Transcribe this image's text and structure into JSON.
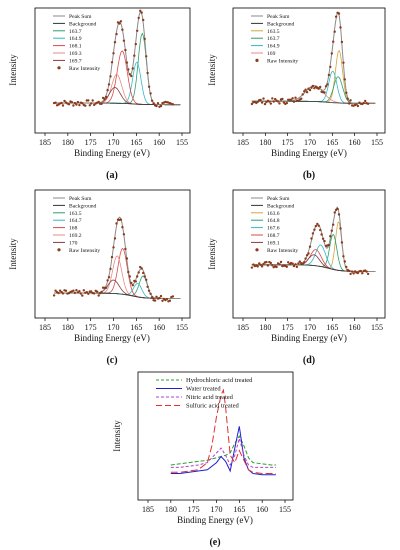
{
  "panels": [
    {
      "id": "a",
      "label": "(a)",
      "chart_data": {
        "type": "line",
        "xlabel": "Binding Energy (eV)",
        "ylabel": "Intensity",
        "xlim": [
          185,
          155
        ],
        "xticks": [
          185,
          180,
          175,
          170,
          165,
          160,
          155
        ],
        "legend": {
          "position": "top-left",
          "entries": [
            {
              "label": "Peak Sum",
              "color": "#8a8a8a",
              "style": "line"
            },
            {
              "label": "Background",
              "color": "#333333",
              "style": "line"
            },
            {
              "label": "163.7",
              "color": "#2ca06a",
              "style": "line"
            },
            {
              "label": "164.9",
              "color": "#33b8c8",
              "style": "line"
            },
            {
              "label": "168.1",
              "color": "#d94a4a",
              "style": "line"
            },
            {
              "label": "169.3",
              "color": "#e88a8a",
              "style": "line"
            },
            {
              "label": "169.7",
              "color": "#8a3a3a",
              "style": "line"
            },
            {
              "label": "Raw Intensity",
              "color": "#8b3a1a",
              "style": "dot"
            }
          ]
        },
        "curves": {
          "baseline": 0.85,
          "bg_height": 0.06,
          "peaks": [
            {
              "center": 163.7,
              "height": 2.7,
              "width": 0.9,
              "color": "#2ca06a"
            },
            {
              "center": 164.9,
              "height": 1.6,
              "width": 0.9,
              "color": "#33b8c8"
            },
            {
              "center": 168.1,
              "height": 2.0,
              "width": 1.1,
              "color": "#d94a4a"
            },
            {
              "center": 169.3,
              "height": 1.1,
              "width": 1.1,
              "color": "#e88a8a"
            },
            {
              "center": 169.7,
              "height": 0.6,
              "width": 1.2,
              "color": "#8a3a3a"
            }
          ],
          "ymax": 4.3
        }
      }
    },
    {
      "id": "b",
      "label": "(b)",
      "chart_data": {
        "type": "line",
        "xlabel": "Binding Energy (eV)",
        "ylabel": "Intensity",
        "xlim": [
          185,
          155
        ],
        "xticks": [
          185,
          180,
          175,
          170,
          165,
          160,
          155
        ],
        "legend": {
          "position": "top-left",
          "entries": [
            {
              "label": "Peak Sum",
              "color": "#8a8a8a",
              "style": "line"
            },
            {
              "label": "Background",
              "color": "#333333",
              "style": "line"
            },
            {
              "label": "163.5",
              "color": "#d4a43a",
              "style": "line"
            },
            {
              "label": "163.7",
              "color": "#2ca06a",
              "style": "line"
            },
            {
              "label": "164.9",
              "color": "#33b8c8",
              "style": "line"
            },
            {
              "label": "169",
              "color": "#e88a8a",
              "style": "line"
            },
            {
              "label": "Raw Intensity",
              "color": "#8b3a1a",
              "style": "dot"
            }
          ]
        },
        "curves": {
          "baseline": 0.9,
          "bg_height": 0.08,
          "peaks": [
            {
              "center": 163.5,
              "height": 2.0,
              "width": 0.8,
              "color": "#d4a43a"
            },
            {
              "center": 163.7,
              "height": 1.0,
              "width": 1.0,
              "color": "#2ca06a"
            },
            {
              "center": 164.9,
              "height": 1.2,
              "width": 0.9,
              "color": "#33b8c8"
            },
            {
              "center": 169,
              "height": 0.6,
              "width": 2.0,
              "color": "#e88a8a"
            }
          ],
          "ymax": 4.3
        }
      }
    },
    {
      "id": "c",
      "label": "(c)",
      "chart_data": {
        "type": "line",
        "xlabel": "Binding Energy (eV)",
        "ylabel": "Intensity",
        "xlim": [
          185,
          155
        ],
        "xticks": [
          185,
          180,
          175,
          170,
          165,
          160,
          155
        ],
        "legend": {
          "position": "top-left",
          "entries": [
            {
              "label": "Peak Sum",
              "color": "#8a8a8a",
              "style": "line"
            },
            {
              "label": "Background",
              "color": "#333333",
              "style": "line"
            },
            {
              "label": "163.5",
              "color": "#2ca06a",
              "style": "line"
            },
            {
              "label": "164.7",
              "color": "#33b8c8",
              "style": "line"
            },
            {
              "label": "168",
              "color": "#d94a4a",
              "style": "line"
            },
            {
              "label": "169.2",
              "color": "#e88a8a",
              "style": "line"
            },
            {
              "label": "170",
              "color": "#8a3a3a",
              "style": "line"
            },
            {
              "label": "Raw Intensity",
              "color": "#8b3a1a",
              "style": "dot"
            }
          ]
        },
        "curves": {
          "baseline": 0.5,
          "bg_height": 0.2,
          "peaks": [
            {
              "center": 163.5,
              "height": 0.8,
              "width": 0.9,
              "color": "#2ca06a"
            },
            {
              "center": 164.7,
              "height": 0.5,
              "width": 0.9,
              "color": "#33b8c8"
            },
            {
              "center": 168,
              "height": 1.7,
              "width": 1.0,
              "color": "#d94a4a"
            },
            {
              "center": 169.2,
              "height": 1.4,
              "width": 1.0,
              "color": "#e88a8a"
            },
            {
              "center": 170,
              "height": 0.5,
              "width": 1.2,
              "color": "#8a3a3a"
            }
          ],
          "ymax": 4.3
        }
      }
    },
    {
      "id": "d",
      "label": "(d)",
      "chart_data": {
        "type": "line",
        "xlabel": "Binding Energy (eV)",
        "ylabel": "Intensity",
        "xlim": [
          185,
          155
        ],
        "xticks": [
          185,
          180,
          175,
          170,
          165,
          160,
          155
        ],
        "legend": {
          "position": "top-left",
          "entries": [
            {
              "label": "Peak Sum",
              "color": "#8a8a8a",
              "style": "line"
            },
            {
              "label": "Background",
              "color": "#333333",
              "style": "line"
            },
            {
              "label": "163.6",
              "color": "#d4a43a",
              "style": "line"
            },
            {
              "label": "164.8",
              "color": "#2ca06a",
              "style": "line"
            },
            {
              "label": "167.6",
              "color": "#33b8c8",
              "style": "line"
            },
            {
              "label": "168.7",
              "color": "#d94a4a",
              "style": "line"
            },
            {
              "label": "169.1",
              "color": "#8a3a3a",
              "style": "line"
            },
            {
              "label": "Raw Intensity",
              "color": "#8b3a1a",
              "style": "dot"
            }
          ]
        },
        "curves": {
          "baseline": 1.5,
          "bg_height": 0.25,
          "peaks": [
            {
              "center": 163.6,
              "height": 1.8,
              "width": 0.7,
              "color": "#d4a43a"
            },
            {
              "center": 164.8,
              "height": 1.3,
              "width": 0.8,
              "color": "#2ca06a"
            },
            {
              "center": 167.6,
              "height": 0.8,
              "width": 1.1,
              "color": "#33b8c8"
            },
            {
              "center": 168.7,
              "height": 0.6,
              "width": 1.2,
              "color": "#d94a4a"
            },
            {
              "center": 169.1,
              "height": 0.4,
              "width": 1.2,
              "color": "#8a3a3a"
            }
          ],
          "ymax": 4.3
        }
      }
    },
    {
      "id": "e",
      "label": "(e)",
      "chart_data": {
        "type": "line",
        "xlabel": "Binding Energy (eV)",
        "ylabel": "Intensity",
        "xlim": [
          185,
          155
        ],
        "xticks": [
          185,
          180,
          175,
          170,
          165,
          160,
          155
        ],
        "legend": {
          "position": "top-left",
          "entries": [
            {
              "label": "Hydrochloric acid treated",
              "color": "#2ca02c",
              "style": "dash"
            },
            {
              "label": "Water treated",
              "color": "#2020d0",
              "style": "line"
            },
            {
              "label": "Nitric acid treated",
              "color": "#b040d0",
              "style": "dash"
            },
            {
              "label": "Sulfuric acid treated",
              "color": "#e03030",
              "style": "longdash"
            }
          ]
        },
        "series": [
          {
            "name": "Hydrochloric acid treated",
            "color": "#2ca02c",
            "x": [
              180,
              178,
              176,
              174,
              172,
              170,
              169,
              168,
              167,
              166,
              165,
              164,
              163,
              162,
              160,
              158,
              157
            ],
            "y": [
              1.2,
              1.25,
              1.3,
              1.35,
              1.4,
              1.5,
              1.55,
              1.6,
              1.7,
              2.1,
              2.4,
              2.0,
              1.5,
              1.3,
              1.25,
              1.2,
              1.2
            ]
          },
          {
            "name": "Water treated",
            "color": "#2020d0",
            "x": [
              180,
              178,
              176,
              174,
              172,
              170,
              169,
              168,
              167,
              166,
              165,
              164,
              163,
              162,
              160,
              158,
              157
            ],
            "y": [
              0.85,
              0.85,
              0.9,
              0.95,
              1.0,
              1.3,
              1.55,
              1.35,
              0.95,
              1.9,
              2.8,
              1.5,
              1.0,
              0.85,
              0.8,
              0.8,
              0.8
            ]
          },
          {
            "name": "Nitric acid treated",
            "color": "#b040d0",
            "x": [
              180,
              178,
              176,
              174,
              172,
              170,
              169,
              168,
              167,
              166,
              165,
              164,
              163,
              162,
              160,
              158,
              157
            ],
            "y": [
              1.1,
              1.1,
              1.15,
              1.2,
              1.3,
              1.7,
              1.9,
              1.6,
              1.2,
              1.6,
              2.3,
              1.6,
              1.2,
              1.1,
              1.1,
              1.1,
              1.1
            ]
          },
          {
            "name": "Sulfuric acid treated",
            "color": "#e03030",
            "x": [
              180,
              178,
              176,
              174,
              172,
              171,
              170,
              169,
              168.5,
              168,
              167,
              166,
              165,
              164,
              163,
              162,
              160,
              158,
              157
            ],
            "y": [
              0.9,
              0.9,
              0.95,
              1.0,
              1.3,
              2.0,
              3.2,
              4.1,
              4.3,
              3.6,
              1.6,
              1.3,
              1.8,
              1.4,
              1.0,
              0.9,
              0.85,
              0.85,
              0.85
            ]
          }
        ],
        "ymax": 4.8
      }
    }
  ]
}
